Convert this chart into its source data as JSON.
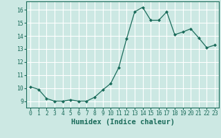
{
  "x": [
    0,
    1,
    2,
    3,
    4,
    5,
    6,
    7,
    8,
    9,
    10,
    11,
    12,
    13,
    14,
    15,
    16,
    17,
    18,
    19,
    20,
    21,
    22,
    23
  ],
  "y": [
    10.1,
    9.9,
    9.2,
    9.0,
    9.0,
    9.1,
    9.0,
    9.0,
    9.3,
    9.85,
    10.35,
    11.55,
    13.8,
    15.85,
    16.2,
    15.2,
    15.2,
    15.85,
    14.1,
    14.3,
    14.55,
    13.85,
    13.1,
    13.3
  ],
  "xlabel": "Humidex (Indice chaleur)",
  "xlim": [
    -0.5,
    23.5
  ],
  "ylim": [
    8.5,
    16.65
  ],
  "yticks": [
    9,
    10,
    11,
    12,
    13,
    14,
    15,
    16
  ],
  "xticks": [
    0,
    1,
    2,
    3,
    4,
    5,
    6,
    7,
    8,
    9,
    10,
    11,
    12,
    13,
    14,
    15,
    16,
    17,
    18,
    19,
    20,
    21,
    22,
    23
  ],
  "line_color": "#1a6b5a",
  "marker": "D",
  "marker_size": 2.0,
  "bg_color": "#cce8e3",
  "grid_color": "#ffffff",
  "tick_label_fontsize": 5.8,
  "xlabel_fontsize": 7.5,
  "linewidth": 0.9
}
